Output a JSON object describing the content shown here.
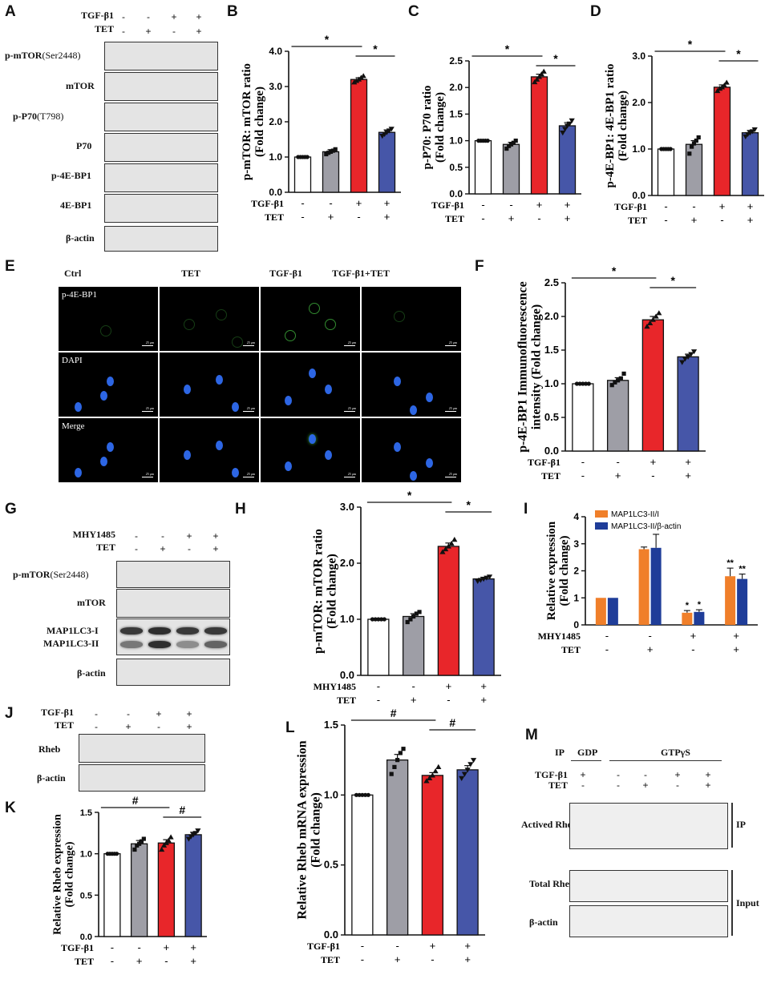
{
  "panel_letters": {
    "A": "A",
    "B": "B",
    "C": "C",
    "D": "D",
    "E": "E",
    "F": "F",
    "G": "G",
    "H": "H",
    "I": "I",
    "J": "J",
    "K": "K",
    "L": "L",
    "M": "M"
  },
  "labels": {
    "tgf": "TGF-β1",
    "tet": "TET",
    "mhy": "MHY1485",
    "plus": "+",
    "minus": "-",
    "sig": "*",
    "hash": "#",
    "dsig": "**"
  },
  "blot_A": {
    "rows": [
      {
        "name": "p-mTOR",
        "site": "(Ser2448)"
      },
      {
        "name": "mTOR",
        "site": ""
      },
      {
        "name": "p-P70",
        "site": "(T798)"
      },
      {
        "name": "P70",
        "site": ""
      },
      {
        "name": "p-4E-BP1",
        "site": ""
      },
      {
        "name": "4E-BP1",
        "site": ""
      },
      {
        "name": "β-actin",
        "site": ""
      }
    ],
    "tgf": [
      "-",
      "-",
      "+",
      "+"
    ],
    "tet": [
      "-",
      "+",
      "-",
      "+"
    ]
  },
  "blot_G": {
    "rows": [
      {
        "name": "p-mTOR",
        "site": "(Ser2448)"
      },
      {
        "name": "mTOR",
        "site": ""
      },
      {
        "name": "MAP1LC3-I",
        "site": ""
      },
      {
        "name": "MAP1LC3-II",
        "site": ""
      },
      {
        "name": "β-actin",
        "site": ""
      }
    ],
    "mhy": [
      "-",
      "-",
      "+",
      "+"
    ],
    "tet": [
      "-",
      "+",
      "-",
      "+"
    ]
  },
  "blot_J": {
    "rows": [
      {
        "name": "Rheb"
      },
      {
        "name": "β-actin"
      }
    ],
    "tgf": [
      "-",
      "-",
      "+",
      "+"
    ],
    "tet": [
      "-",
      "+",
      "-",
      "+"
    ]
  },
  "blot_M": {
    "ip_label": "IP",
    "gdp": "GDP",
    "gtp": "GTPγS",
    "tgf": [
      "+",
      "-",
      "-",
      "+",
      "+"
    ],
    "tet": [
      "-",
      "-",
      "+",
      "-",
      "+"
    ],
    "rows": [
      {
        "name": "Actived Rheb"
      },
      {
        "name": "Total Rheb"
      },
      {
        "name": "β-actin"
      }
    ],
    "bracket_ip": "IP",
    "bracket_input": "Input"
  },
  "micro_E": {
    "columns": [
      "Ctrl",
      "TET",
      "TGF-β1",
      "TGF-β1+TET"
    ],
    "rows": [
      "p-4E-BP1",
      "DAPI",
      "Merge"
    ],
    "scale": "25 μm"
  },
  "chart_data": [
    {
      "id": "B",
      "type": "bar",
      "ylabel": "p-mTOR: mTOR ratio\n(Fold change)",
      "ylim": [
        0,
        4
      ],
      "ticks": [
        "0.0",
        "1.0",
        "2.0",
        "3.0",
        "4.0"
      ],
      "tickvals": [
        0,
        1,
        2,
        3,
        4
      ],
      "values": [
        1.0,
        1.15,
        3.2,
        1.7
      ],
      "errors": [
        0.02,
        0.06,
        0.05,
        0.07
      ],
      "points": [
        [
          1,
          1,
          1,
          1,
          1
        ],
        [
          1.08,
          1.12,
          1.15,
          1.18,
          1.22
        ],
        [
          3.12,
          3.16,
          3.2,
          3.25,
          3.3
        ],
        [
          1.6,
          1.65,
          1.7,
          1.75,
          1.8
        ]
      ],
      "conditions": [
        {
          "name": "TGF-β1",
          "values": [
            "-",
            "-",
            "+",
            "+"
          ]
        },
        {
          "name": "TET",
          "values": [
            "-",
            "+",
            "-",
            "+"
          ]
        }
      ],
      "brackets": [
        {
          "from": 0,
          "to": 2,
          "label": "*"
        },
        {
          "from": 2,
          "to": 3,
          "label": "*"
        }
      ]
    },
    {
      "id": "C",
      "type": "bar",
      "ylabel": "p-P70: P70 ratio\n(Fold change)",
      "ylim": [
        0,
        2.5
      ],
      "ticks": [
        "0.0",
        "0.5",
        "1.0",
        "1.5",
        "2.0",
        "2.5"
      ],
      "tickvals": [
        0,
        0.5,
        1,
        1.5,
        2,
        2.5
      ],
      "values": [
        1.0,
        0.93,
        2.2,
        1.28
      ],
      "errors": [
        0.01,
        0.04,
        0.05,
        0.06
      ],
      "points": [
        [
          1,
          1,
          1,
          1,
          1
        ],
        [
          0.85,
          0.9,
          0.93,
          0.96,
          1.0
        ],
        [
          2.1,
          2.15,
          2.2,
          2.25,
          2.3
        ],
        [
          1.15,
          1.22,
          1.28,
          1.32,
          1.38
        ]
      ],
      "conditions": [
        {
          "name": "TGF-β1",
          "values": [
            "-",
            "-",
            "+",
            "+"
          ]
        },
        {
          "name": "TET",
          "values": [
            "-",
            "+",
            "-",
            "+"
          ]
        }
      ],
      "brackets": [
        {
          "from": 0,
          "to": 2,
          "label": "*"
        },
        {
          "from": 2,
          "to": 3,
          "label": "*"
        }
      ]
    },
    {
      "id": "D",
      "type": "bar",
      "ylabel": "p-4E-BP1: 4E-BP1 ratio\n(Fold change)",
      "ylim": [
        0,
        3
      ],
      "ticks": [
        "0.0",
        "1.0",
        "2.0",
        "3.0"
      ],
      "tickvals": [
        0,
        1,
        2,
        3
      ],
      "values": [
        1.0,
        1.1,
        2.33,
        1.35
      ],
      "errors": [
        0.01,
        0.08,
        0.05,
        0.05
      ],
      "points": [
        [
          1,
          1,
          1,
          1,
          1
        ],
        [
          0.9,
          1.05,
          1.12,
          1.18,
          1.25
        ],
        [
          2.25,
          2.3,
          2.33,
          2.37,
          2.43
        ],
        [
          1.27,
          1.32,
          1.35,
          1.38,
          1.42
        ]
      ],
      "conditions": [
        {
          "name": "TGF-β1",
          "values": [
            "-",
            "-",
            "+",
            "+"
          ]
        },
        {
          "name": "TET",
          "values": [
            "-",
            "+",
            "-",
            "+"
          ]
        }
      ],
      "brackets": [
        {
          "from": 0,
          "to": 2,
          "label": "*"
        },
        {
          "from": 2,
          "to": 3,
          "label": "*"
        }
      ]
    },
    {
      "id": "F",
      "type": "bar",
      "ylabel": "p-4E-BP1 Immunofluorescence\nintensity (Fold change)",
      "ylim": [
        0,
        2.5
      ],
      "ticks": [
        "0.0",
        "0.5",
        "1.0",
        "1.5",
        "2.0",
        "2.5"
      ],
      "tickvals": [
        0,
        0.5,
        1,
        1.5,
        2,
        2.5
      ],
      "values": [
        1.0,
        1.05,
        1.95,
        1.4
      ],
      "errors": [
        0.01,
        0.04,
        0.05,
        0.04
      ],
      "points": [
        [
          1,
          1,
          1,
          1,
          1
        ],
        [
          0.98,
          1.02,
          1.05,
          1.08,
          1.15
        ],
        [
          1.85,
          1.9,
          1.95,
          2.0,
          2.05
        ],
        [
          1.32,
          1.37,
          1.4,
          1.44,
          1.48
        ]
      ],
      "conditions": [
        {
          "name": "TGF-β1",
          "values": [
            "-",
            "-",
            "+",
            "+"
          ]
        },
        {
          "name": "TET",
          "values": [
            "-",
            "+",
            "-",
            "+"
          ]
        }
      ],
      "brackets": [
        {
          "from": 0,
          "to": 2,
          "label": "*"
        },
        {
          "from": 2,
          "to": 3,
          "label": "*"
        }
      ]
    },
    {
      "id": "H",
      "type": "bar",
      "ylabel": "p-mTOR: mTOR ratio\n(Fold change)",
      "ylim": [
        0,
        3
      ],
      "ticks": [
        "0.0",
        "1.0",
        "2.0",
        "3.0"
      ],
      "tickvals": [
        0,
        1,
        2,
        3
      ],
      "values": [
        1.0,
        1.05,
        2.3,
        1.72
      ],
      "errors": [
        0.01,
        0.05,
        0.06,
        0.03
      ],
      "points": [
        [
          1,
          1,
          1,
          1,
          1
        ],
        [
          0.95,
          1.0,
          1.05,
          1.1,
          1.13
        ],
        [
          2.2,
          2.25,
          2.3,
          2.35,
          2.42
        ],
        [
          1.68,
          1.7,
          1.72,
          1.74,
          1.76
        ]
      ],
      "conditions": [
        {
          "name": "MHY1485",
          "values": [
            "-",
            "-",
            "+",
            "+"
          ]
        },
        {
          "name": "TET",
          "values": [
            "-",
            "+",
            "-",
            "+"
          ]
        }
      ],
      "brackets": [
        {
          "from": 0,
          "to": 2,
          "label": "*"
        },
        {
          "from": 2,
          "to": 3,
          "label": "*"
        }
      ]
    },
    {
      "id": "I",
      "type": "grouped-bar",
      "ylabel": "Relative expression\n(Fold change)",
      "ylim": [
        0,
        4
      ],
      "ticks": [
        "0",
        "1",
        "2",
        "3",
        "4"
      ],
      "tickvals": [
        0,
        1,
        2,
        3,
        4
      ],
      "series": [
        {
          "name": "MAP1LC3-II/I",
          "color": "#f07f2a",
          "values": [
            1.0,
            2.8,
            0.45,
            1.8
          ],
          "errors": [
            0,
            0.08,
            0.08,
            0.3
          ],
          "marks": [
            "",
            "",
            "*",
            "**"
          ]
        },
        {
          "name": "MAP1LC3-II/β-actin",
          "color": "#1f3d99",
          "values": [
            1.0,
            2.85,
            0.48,
            1.7
          ],
          "errors": [
            0,
            0.5,
            0.08,
            0.18
          ],
          "marks": [
            "",
            "",
            "*",
            "**"
          ]
        }
      ],
      "conditions": [
        {
          "name": "MHY1485",
          "values": [
            "-",
            "-",
            "+",
            "+"
          ]
        },
        {
          "name": "TET",
          "values": [
            "-",
            "+",
            "-",
            "+"
          ]
        }
      ]
    },
    {
      "id": "K",
      "type": "bar",
      "ylabel": "Relative Rheb expression\n(Fold change)",
      "ylim": [
        0,
        1.5
      ],
      "ticks": [
        "0.0",
        "0.5",
        "1.0",
        "1.5"
      ],
      "tickvals": [
        0,
        0.5,
        1,
        1.5
      ],
      "values": [
        1.0,
        1.12,
        1.13,
        1.23
      ],
      "errors": [
        0.01,
        0.04,
        0.04,
        0.03
      ],
      "points": [
        [
          1,
          1,
          1,
          1,
          1
        ],
        [
          1.05,
          1.1,
          1.12,
          1.15,
          1.18
        ],
        [
          1.05,
          1.1,
          1.13,
          1.16,
          1.2
        ],
        [
          1.18,
          1.21,
          1.23,
          1.25,
          1.28
        ]
      ],
      "conditions": [
        {
          "name": "TGF-β1",
          "values": [
            "-",
            "-",
            "+",
            "+"
          ]
        },
        {
          "name": "TET",
          "values": [
            "-",
            "+",
            "-",
            "+"
          ]
        }
      ],
      "brackets": [
        {
          "from": 0,
          "to": 2,
          "label": "#"
        },
        {
          "from": 2,
          "to": 3,
          "label": "#"
        }
      ]
    },
    {
      "id": "L",
      "type": "bar",
      "ylabel": "Relative Rheb mRNA expression\n(Fold change)",
      "ylim": [
        0,
        1.5
      ],
      "ticks": [
        "0.0",
        "0.5",
        "1.0",
        "1.5"
      ],
      "tickvals": [
        0,
        0.5,
        1,
        1.5
      ],
      "values": [
        1.0,
        1.25,
        1.14,
        1.18
      ],
      "errors": [
        0.005,
        0.04,
        0.02,
        0.03
      ],
      "points": [
        [
          1,
          1,
          1,
          1,
          1
        ],
        [
          1.15,
          1.2,
          1.25,
          1.3,
          1.33
        ],
        [
          1.1,
          1.12,
          1.14,
          1.17,
          1.2
        ],
        [
          1.12,
          1.15,
          1.18,
          1.22,
          1.25
        ]
      ],
      "conditions": [
        {
          "name": "TGF-β1",
          "values": [
            "-",
            "-",
            "+",
            "+"
          ]
        },
        {
          "name": "TET",
          "values": [
            "-",
            "+",
            "-",
            "+"
          ]
        }
      ],
      "brackets": [
        {
          "from": 0,
          "to": 2,
          "label": "#"
        },
        {
          "from": 2,
          "to": 3,
          "label": "#"
        }
      ]
    }
  ],
  "colors": {
    "ctrl": "#ffffff",
    "tet": "#9e9ea6",
    "tgf": "#e8262a",
    "combo": "#4656a8",
    "cells": "#2f6cf0",
    "green": "#3fae3c"
  }
}
